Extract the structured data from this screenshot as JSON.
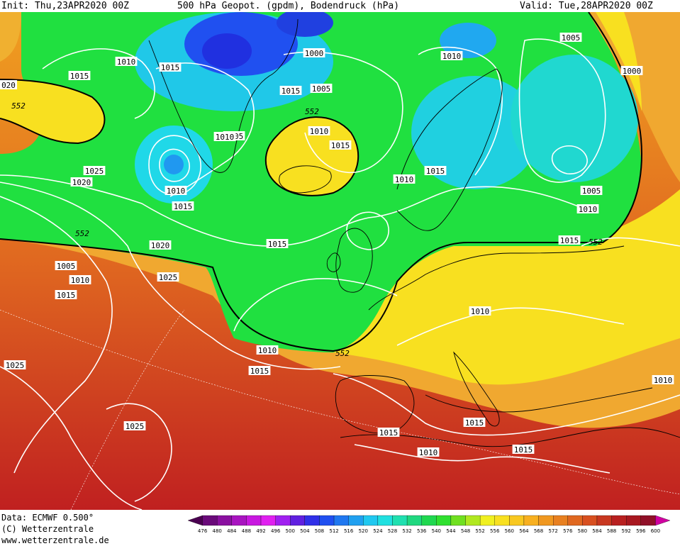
{
  "header": {
    "init": "Init: Thu,23APR2020 00Z",
    "title": "500 hPa Geopot. (gpdm), Bodendruck (hPa)",
    "valid": "Valid: Tue,28APR2020 00Z"
  },
  "footer": {
    "data_line": "Data: ECMWF  0.500°",
    "copyright": "(C) Wetterzentrale",
    "website": "www.wetterzentrale.de"
  },
  "scale": {
    "values": [
      "476",
      "480",
      "484",
      "488",
      "492",
      "496",
      "500",
      "504",
      "508",
      "512",
      "516",
      "520",
      "524",
      "528",
      "532",
      "536",
      "540",
      "544",
      "548",
      "552",
      "556",
      "560",
      "564",
      "568",
      "572",
      "576",
      "580",
      "584",
      "588",
      "592",
      "596",
      "600"
    ],
    "colors": [
      "#4a0050",
      "#6a0a7a",
      "#8a10a0",
      "#a814c0",
      "#c818e0",
      "#e020f0",
      "#a020f0",
      "#6020e0",
      "#3030e8",
      "#2050f0",
      "#2078f0",
      "#20a0f0",
      "#20c8f0",
      "#20e0e0",
      "#20e0b0",
      "#20d880",
      "#20d850",
      "#30e030",
      "#70e020",
      "#b0e820",
      "#f0f020",
      "#f8e020",
      "#f8c820",
      "#f8b020",
      "#f09820",
      "#e88020",
      "#e06820",
      "#d85020",
      "#c83820",
      "#b82020",
      "#a81820",
      "#901028",
      "#d000a0"
    ]
  },
  "pressure_labels": [
    "1010",
    "1015",
    "1000",
    "1005",
    "1010",
    "1005",
    "1000",
    "020",
    "1015",
    "1015",
    "1005",
    "552",
    "1010",
    "1015",
    "552",
    "1010",
    "1025",
    "1020",
    "1010",
    "1015",
    "1010",
    "1015",
    "1005",
    "1010",
    "552",
    "1020",
    "1015",
    "1015",
    "552",
    "1005",
    "1010",
    "1015",
    "1025",
    "1010",
    "1010",
    "552",
    "1015",
    "1025",
    "1025",
    "1015",
    "1015",
    "1010",
    "1015",
    "1010"
  ],
  "isoline_552": "552",
  "colors": {
    "deep_blue": "#2030e8",
    "cyan": "#20d8e8",
    "green": "#20e040",
    "yellow": "#f8f020",
    "orange": "#f0a020",
    "red": "#c82020"
  }
}
